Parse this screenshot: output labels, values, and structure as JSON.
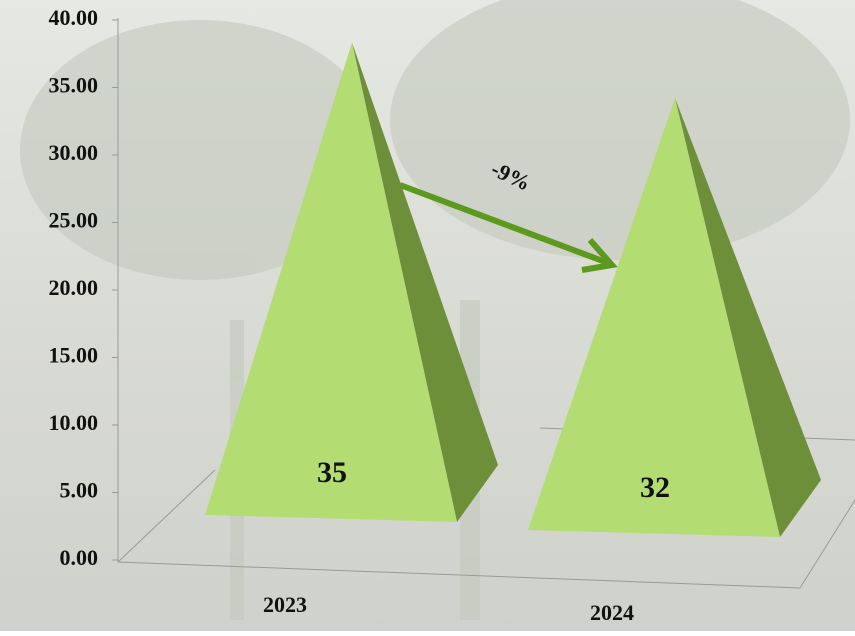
{
  "chart_data": {
    "type": "pyramid",
    "categories": [
      "2023",
      "2024"
    ],
    "values": [
      35,
      32
    ],
    "colors": {
      "front": "#b3dc72",
      "side": "#6e8f3a"
    },
    "ylim": [
      0,
      40
    ],
    "yticks": [
      {
        "value": 0,
        "label": "0.00"
      },
      {
        "value": 5,
        "label": "5.00"
      },
      {
        "value": 10,
        "label": "10.00"
      },
      {
        "value": 15,
        "label": "15.00"
      },
      {
        "value": 20,
        "label": "20.00"
      },
      {
        "value": 25,
        "label": "25.00"
      },
      {
        "value": 30,
        "label": "30.00"
      },
      {
        "value": 35,
        "label": "35.00"
      },
      {
        "value": 40,
        "label": "40.00"
      }
    ],
    "annotation": {
      "text": "-9%",
      "color": "#5c9a1f"
    }
  }
}
